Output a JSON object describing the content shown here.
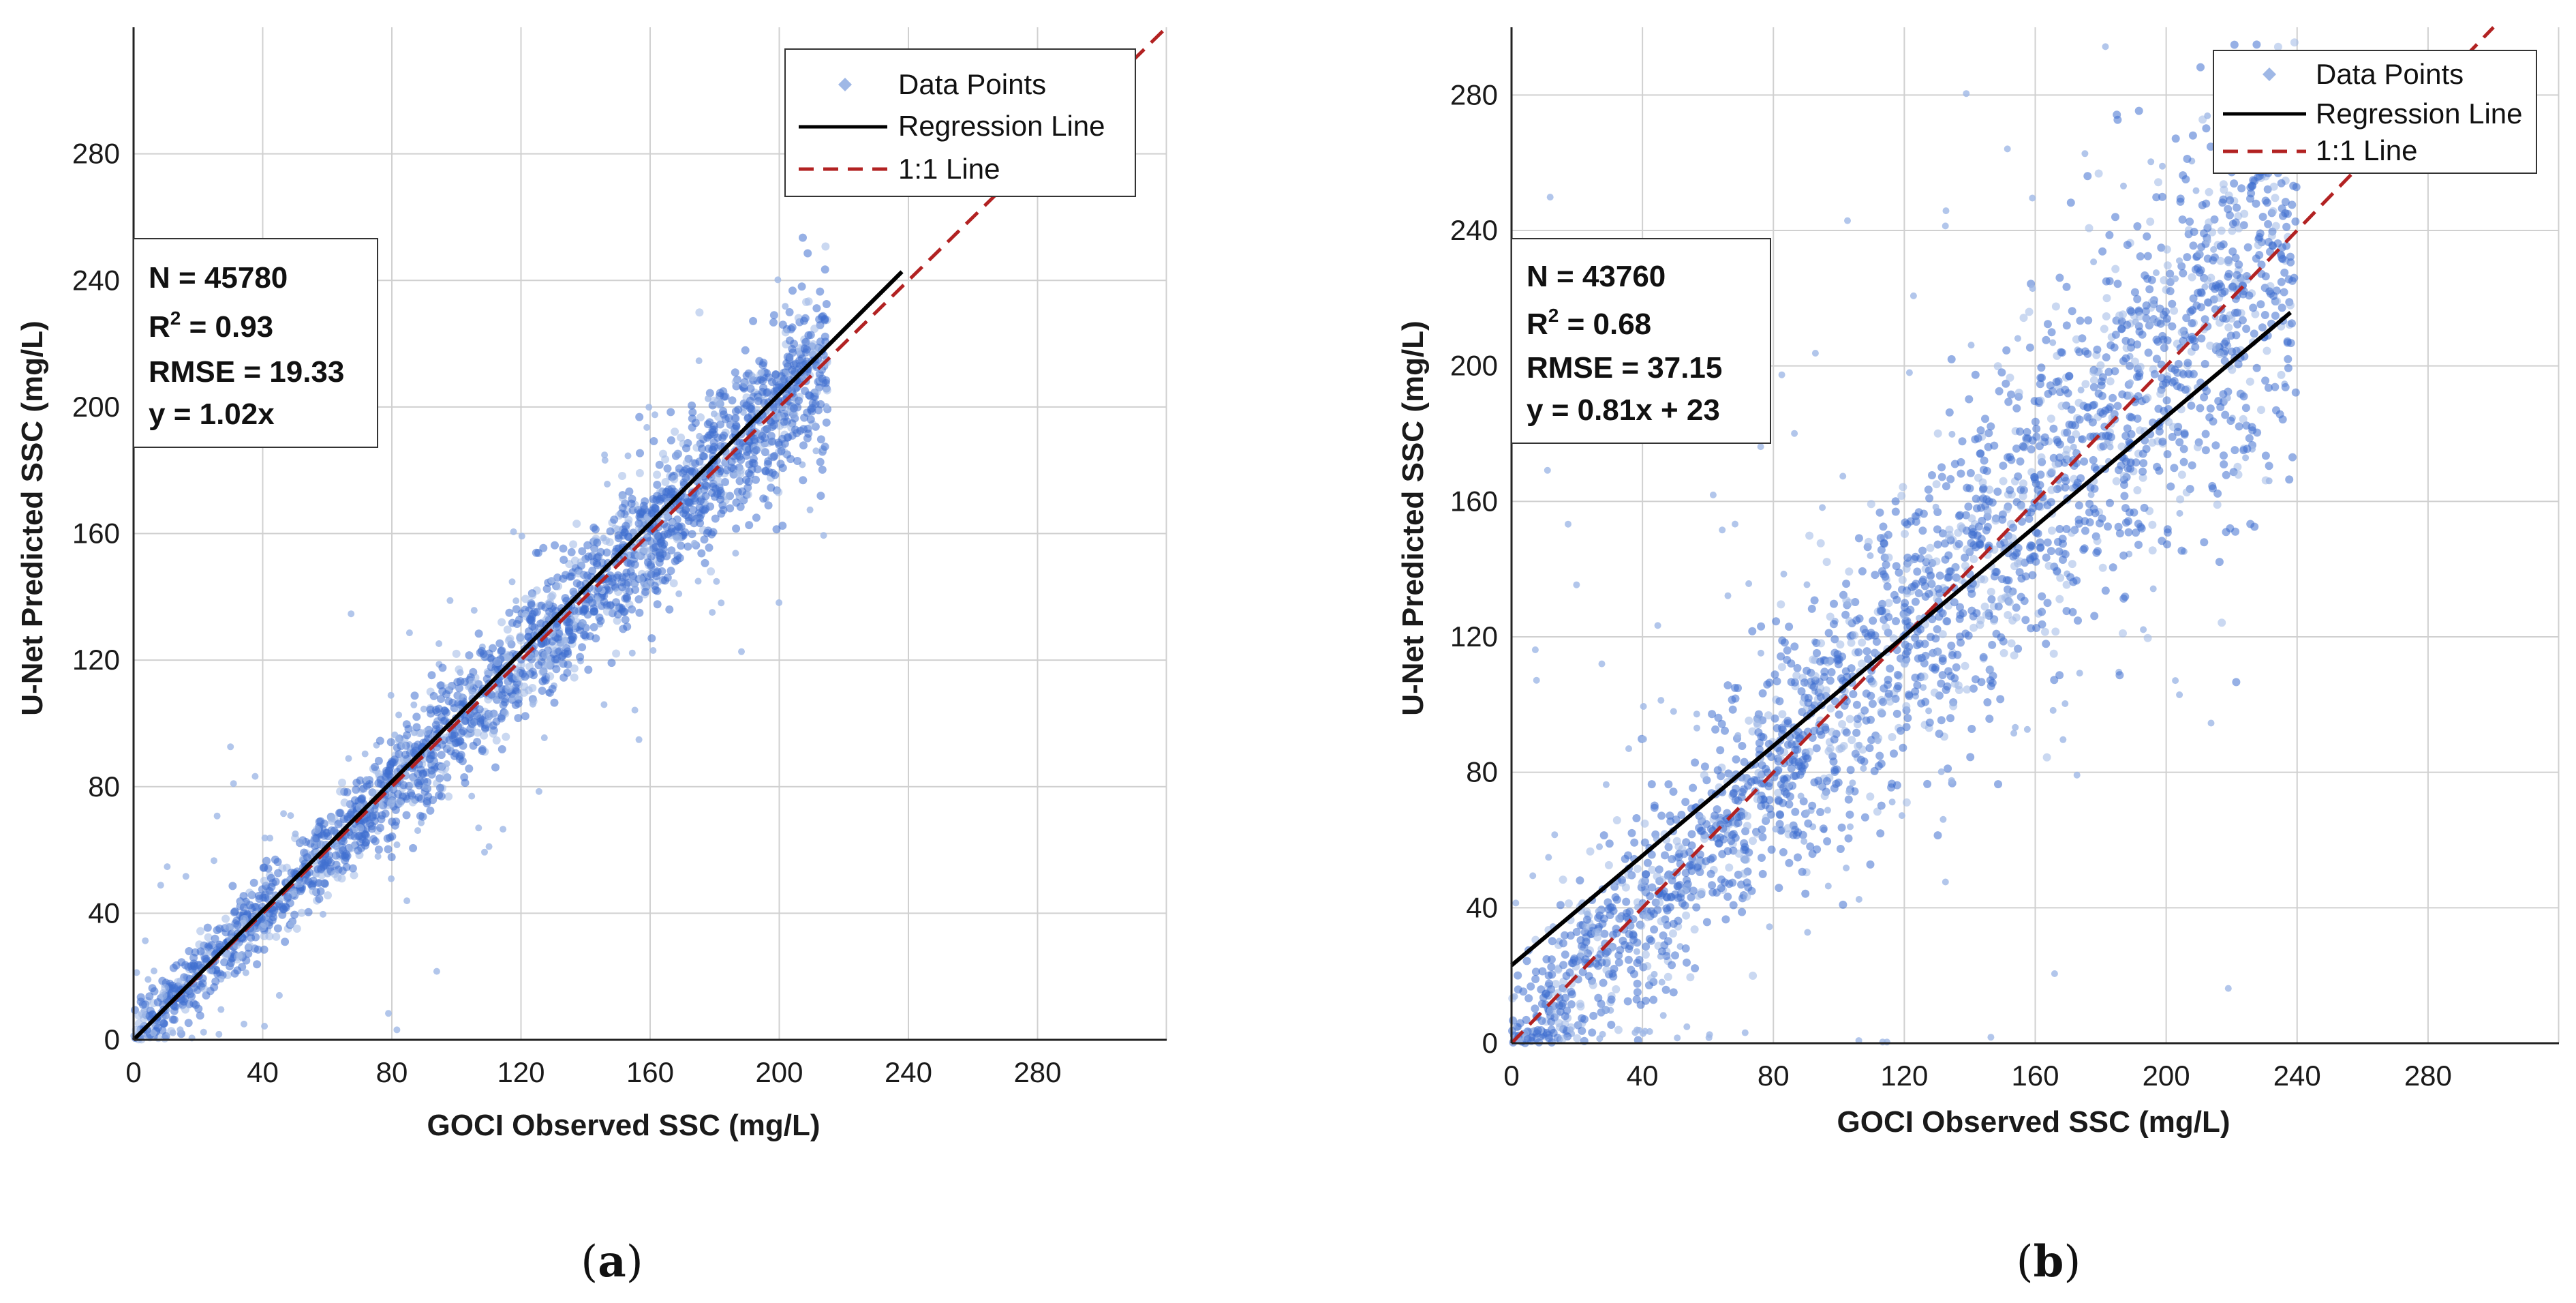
{
  "chart_data": [
    {
      "type": "scatter",
      "panel_label": "a",
      "xlabel": "GOCI Observed SSC (mg/L)",
      "ylabel": "U-Net Predicted SSC (mg/L)",
      "xlim": [
        0,
        320
      ],
      "ylim": [
        0,
        320
      ],
      "xticks": [
        0,
        40,
        80,
        120,
        160,
        200,
        240,
        280
      ],
      "yticks": [
        0,
        40,
        80,
        120,
        160,
        200,
        240,
        280
      ],
      "grid": true,
      "stats": {
        "n": "N = 45780",
        "r2_prefix": "R",
        "r2_sup": "2",
        "r2_value": " = 0.93",
        "rmse": "RMSE = 19.33",
        "equation": "y = 1.02x"
      },
      "regression": {
        "slope": 1.02,
        "intercept": 0,
        "x_range": [
          0,
          238
        ]
      },
      "identity_line": {
        "x_range": [
          0,
          320
        ]
      },
      "legend": {
        "placement": "top-right",
        "items": [
          "Data Points",
          "Regression Line",
          "1:1 Line"
        ]
      },
      "point_cloud": {
        "n_shown": 2600,
        "seed": 11,
        "slope": 1.0,
        "intercept": 0,
        "x_range": [
          0,
          215
        ],
        "spread": 9,
        "outlier_fraction": 0.06
      },
      "colors": {
        "points": "#3f6fcf",
        "points_light": "#9fb8e6",
        "regression": "#000000",
        "identity": "#b22222"
      }
    },
    {
      "type": "scatter",
      "panel_label": "b",
      "xlabel": "GOCI Observed SSC (mg/L)",
      "ylabel": "U-Net Predicted SSC (mg/L)",
      "xlim": [
        0,
        320
      ],
      "ylim": [
        0,
        300
      ],
      "xticks": [
        0,
        40,
        80,
        120,
        160,
        200,
        240,
        280
      ],
      "yticks": [
        0,
        40,
        80,
        120,
        160,
        200,
        240,
        280
      ],
      "grid": true,
      "stats": {
        "n": "N = 43760",
        "r2_prefix": "R",
        "r2_sup": "2",
        "r2_value": " = 0.68",
        "rmse": "RMSE = 37.15",
        "equation": "y = 0.81x + 23"
      },
      "regression": {
        "slope": 0.81,
        "intercept": 23,
        "x_range": [
          0,
          238
        ]
      },
      "identity_line": {
        "x_range": [
          0,
          300
        ]
      },
      "legend": {
        "placement": "top-right",
        "items": [
          "Data Points",
          "Regression Line",
          "1:1 Line"
        ]
      },
      "point_cloud": {
        "n_shown": 2600,
        "seed": 29,
        "slope": 1.0,
        "intercept": 0,
        "x_range": [
          0,
          240
        ],
        "spread": 22,
        "outlier_fraction": 0.08
      },
      "colors": {
        "points": "#3f6fcf",
        "points_light": "#9fb8e6",
        "regression": "#000000",
        "identity": "#b22222"
      }
    }
  ]
}
